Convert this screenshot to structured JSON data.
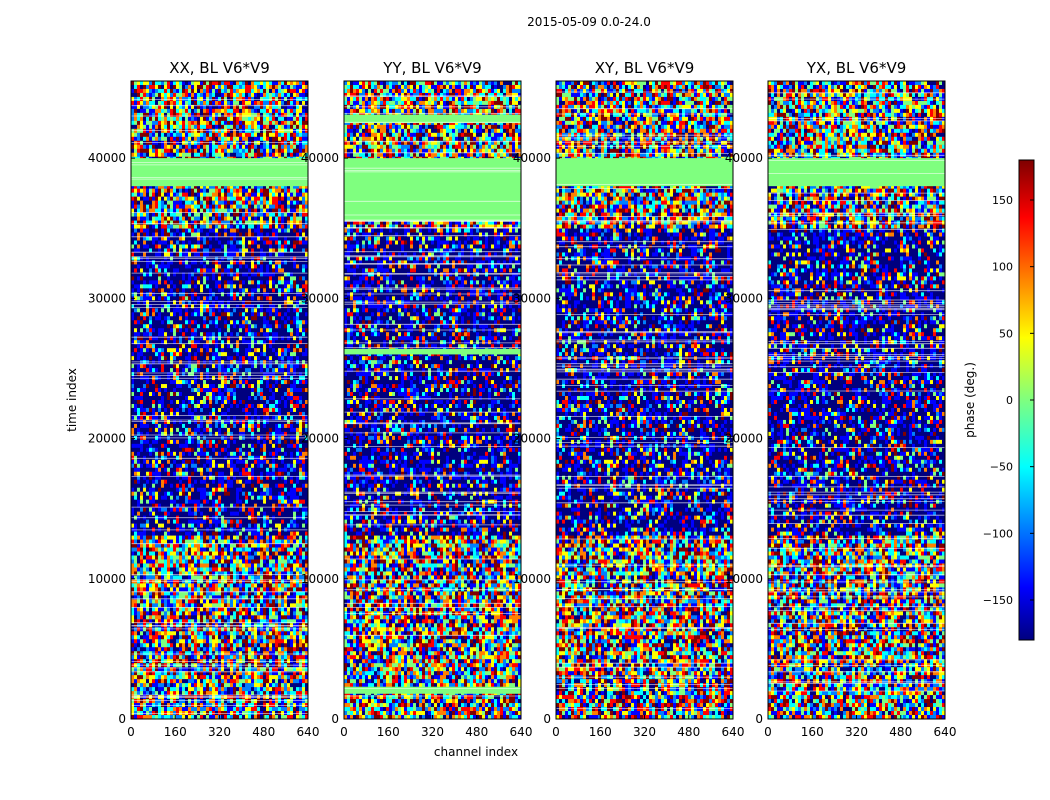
{
  "chart_data": {
    "type": "heatmap",
    "suptitle": "2015-05-09 0.0-24.0",
    "xlabel": "channel index",
    "ylabel": "time index",
    "xlim": [
      0,
      640
    ],
    "ylim": [
      0,
      45500
    ],
    "xticks": [
      0,
      160,
      320,
      480,
      640
    ],
    "yticks": [
      0,
      10000,
      20000,
      30000,
      40000
    ],
    "panels": [
      {
        "title": "XX, BL V6*V9"
      },
      {
        "title": "YY, BL V6*V9"
      },
      {
        "title": "XY, BL V6*V9"
      },
      {
        "title": "YX, BL V6*V9"
      }
    ],
    "flagged_rows": [
      [
        38000,
        40000
      ]
    ],
    "flagged_rows_by_panel": [
      [
        [
          38000,
          40000
        ]
      ],
      [
        [
          35500,
          40000
        ],
        [
          26000,
          26400
        ],
        [
          42500,
          43100
        ],
        [
          1800,
          2300
        ]
      ],
      [
        [
          38000,
          40000
        ]
      ],
      [
        [
          38000,
          40000
        ]
      ]
    ],
    "colorbar": {
      "label": "phase (deg.)",
      "range": [
        -180,
        180
      ],
      "ticks": [
        -150,
        -100,
        -50,
        0,
        50,
        100,
        150
      ],
      "colormap": "jet"
    }
  },
  "colors": {
    "flagged": "#7fff7f",
    "jet": [
      "#00007f",
      "#0000ff",
      "#007fff",
      "#00ffff",
      "#7fff7f",
      "#ffff00",
      "#ff7f00",
      "#ff0000",
      "#7f0000"
    ]
  }
}
